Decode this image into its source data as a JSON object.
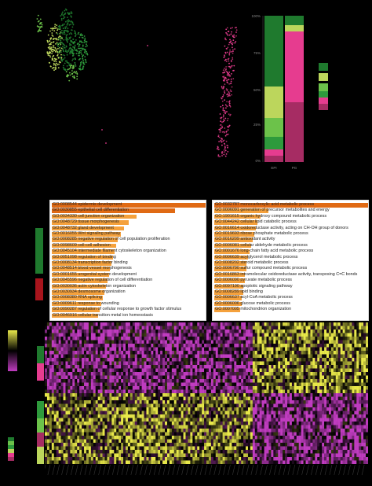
{
  "colors": {
    "background": "#000000",
    "dark_green": "#1f7a2e",
    "mid_green": "#2e9a3c",
    "light_green": "#6cc24a",
    "lime": "#bcd65c",
    "hot_pink": "#e63c8f",
    "dark_pink": "#a62c63",
    "dark_red": "#a8141c",
    "orange_dark": "#e06a14",
    "orange_light": "#f5a13c",
    "heat_low": "#c03cc0",
    "heat_mid": "#000000",
    "heat_high": "#e8e84a"
  },
  "stacked_bar": {
    "y_ticks": [
      "100%",
      "75%",
      "50%",
      "25%",
      "0%"
    ],
    "x_labels": [
      "EPI",
      "PG"
    ]
  },
  "go_left": {
    "terms": [
      "GO:0008544 epidermis development",
      "GO:0030855 epithelial cell differentiation",
      "GO:0034330 cell junction organization",
      "GO:0048729 tissue morphogenesis",
      "GO:0048732 gland development",
      "GO:0016055 Wnt signaling pathway",
      "GO:0008285 negative regulation of cell population proliferation",
      "GO:0098609 cell-cell adhesion",
      "GO:0045104 intermediate filament cytoskeleton organization",
      "GO:0051098 regulation of binding",
      "GO:0008134 transcription factor binding",
      "GO:0048514 blood vessel morphogenesis",
      "GO:0001655 urogenital system development",
      "GO:0045596 negative regulation of cell differentiation",
      "GO:0030036 actin cytoskeleton organization",
      "GO:0030934 desmosome organization",
      "GO:0008380 RNA splicing",
      "GO:0009611 response to wounding",
      "GO:0090287 regulation of cellular response to growth factor stimulus",
      "GO:0046916 cellular transition metal ion homeostasis"
    ],
    "scores": [
      1.0,
      0.8,
      0.55,
      0.5,
      0.47,
      0.45,
      0.43,
      0.42,
      0.41,
      0.4,
      0.39,
      0.38,
      0.37,
      0.36,
      0.35,
      0.34,
      0.33,
      0.32,
      0.31,
      0.3
    ]
  },
  "go_right": {
    "terms": [
      "GO:0032787 monocarboxylic acid metabolic process",
      "GO:0006091 generation of precursor metabolites and energy",
      "GO:1901615 organic hydroxy compound metabolic process",
      "GO:0044242 cellular lipid catabolic process",
      "GO:0016614 oxidoreductase activity, acting on CH-OH group of donors",
      "GO:0019693 ribose phosphate metabolic process",
      "GO:0016209 antioxidant activity",
      "GO:0006081 cellular aldehyde metabolic process",
      "GO:0001676 long-chain fatty acid metabolic process",
      "GO:0006639 acylglycerol metabolic process",
      "GO:0008202 steroid metabolic process",
      "GO:0006790 sulfur compound metabolic process",
      "GO:0016863 intramolecular oxidoreductase activity, transposing C=C bonds",
      "GO:0006090 pyruvate metabolic process",
      "GO:0097190 apoptotic signaling pathway",
      "GO:0008289 lipid binding",
      "GO:0006637 acyl-CoA metabolic process",
      "GO:0006006 glucose metabolic process",
      "GO:0007005 mitochondrion organization"
    ],
    "scores": [
      1.0,
      0.35,
      0.3,
      0.28,
      0.27,
      0.26,
      0.25,
      0.24,
      0.23,
      0.22,
      0.21,
      0.21,
      0.2,
      0.2,
      0.19,
      0.19,
      0.18,
      0.18,
      0.17
    ]
  }
}
